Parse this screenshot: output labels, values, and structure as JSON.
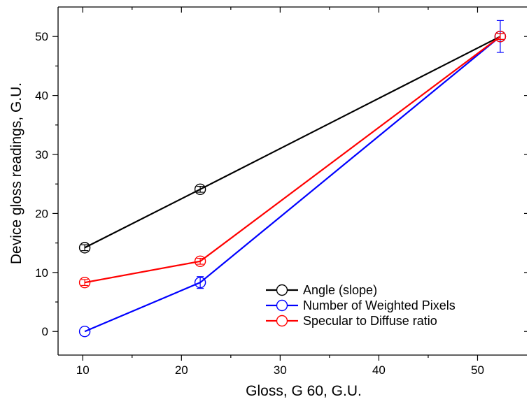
{
  "chart_data": {
    "type": "line",
    "title": "",
    "xlabel": "Gloss, G 60, G.U.",
    "ylabel": "Device gloss readings, G.U.",
    "xlim": [
      7.5,
      55
    ],
    "ylim": [
      -4,
      55
    ],
    "x_ticks": [
      10,
      20,
      30,
      40,
      50
    ],
    "y_ticks": [
      0,
      10,
      20,
      30,
      40,
      50
    ],
    "x_minor_ticks": [
      15,
      25,
      35,
      45
    ],
    "y_minor_ticks": [
      5,
      15,
      25,
      35,
      45
    ],
    "grid": false,
    "legend_position": "bottom-right",
    "marker": "open-circle",
    "series": [
      {
        "name": "Angle (slope)",
        "color": "#000000",
        "x": [
          10.2,
          21.9,
          52.3
        ],
        "y": [
          14.2,
          24.1,
          50.0
        ],
        "error": [
          0.5,
          0.5,
          0.5
        ]
      },
      {
        "name": "Number of Weighted Pixels",
        "color": "#0000ff",
        "x": [
          10.2,
          21.9,
          52.3
        ],
        "y": [
          0.0,
          8.3,
          50.0
        ],
        "error": [
          0.0,
          1.0,
          2.7
        ]
      },
      {
        "name": "Specular to Diffuse ratio",
        "color": "#ff0000",
        "x": [
          10.2,
          21.9,
          52.3
        ],
        "y": [
          8.3,
          11.9,
          50.0
        ],
        "error": [
          0.5,
          0.5,
          0.5
        ]
      }
    ]
  }
}
